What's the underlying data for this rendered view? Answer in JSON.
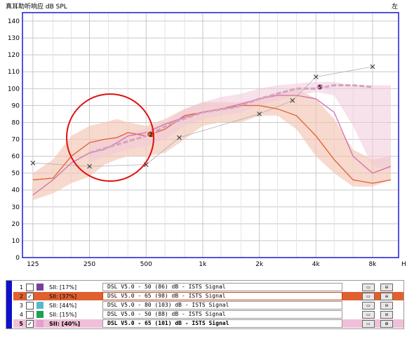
{
  "header": {
    "title": "真耳助听响应 dB SPL",
    "side": "左",
    "h_label": "H"
  },
  "chart_data": {
    "type": "line",
    "title": "真耳助听响应 dB SPL",
    "xscale": "log",
    "xlim": [
      110,
      11000
    ],
    "ylim": [
      0,
      145
    ],
    "yticks": [
      0,
      10,
      20,
      30,
      40,
      50,
      60,
      70,
      80,
      90,
      100,
      110,
      120,
      130,
      140
    ],
    "xticks": [
      {
        "v": 125,
        "label": "125"
      },
      {
        "v": 250,
        "label": "250"
      },
      {
        "v": 500,
        "label": "500"
      },
      {
        "v": 1000,
        "label": "1k"
      },
      {
        "v": 2000,
        "label": "2k"
      },
      {
        "v": 4000,
        "label": "4k"
      },
      {
        "v": 8000,
        "label": "8k"
      }
    ],
    "band_outer": {
      "x": [
        125,
        160,
        200,
        250,
        300,
        350,
        400,
        500,
        630,
        800,
        1000,
        1250,
        1600,
        2000,
        2500,
        3150,
        4000,
        5000,
        6300,
        8000,
        10000
      ],
      "upper": [
        50,
        58,
        72,
        78,
        80,
        82,
        80,
        78,
        82,
        88,
        92,
        92,
        92,
        94,
        98,
        100,
        94,
        82,
        64,
        58,
        60
      ],
      "lower": [
        34,
        38,
        44,
        48,
        55,
        58,
        60,
        60,
        62,
        70,
        78,
        80,
        80,
        84,
        84,
        76,
        60,
        50,
        42,
        42,
        46
      ]
    },
    "band_inner": {
      "x": [
        250,
        300,
        350,
        400,
        500,
        630,
        800,
        1000,
        1250,
        1600,
        2000,
        2500,
        3150,
        4000,
        5000,
        6300,
        8000,
        10000
      ],
      "upper": [
        70,
        70,
        72,
        74,
        76,
        80,
        88,
        92,
        95,
        97,
        100,
        102,
        103,
        104,
        104,
        102,
        102,
        102
      ],
      "lower": [
        56,
        60,
        62,
        64,
        66,
        70,
        78,
        82,
        84,
        86,
        90,
        93,
        96,
        98,
        96,
        78,
        54,
        52
      ]
    },
    "series": [
      {
        "color": "#e06030",
        "x": [
          125,
          160,
          200,
          250,
          300,
          350,
          400,
          500,
          630,
          800,
          1000,
          1250,
          1600,
          2000,
          2500,
          3150,
          4000,
          5000,
          6300,
          8000,
          10000
        ],
        "values": [
          46,
          47,
          60,
          68,
          70,
          71,
          74,
          72,
          76,
          84,
          86,
          88,
          90,
          90,
          88,
          84,
          72,
          58,
          46,
          44,
          46
        ]
      },
      {
        "color": "#d070b0",
        "x": [
          125,
          160,
          200,
          250,
          300,
          350,
          400,
          500,
          630,
          800,
          1000,
          1250,
          1600,
          2000,
          2500,
          3150,
          4000,
          5000,
          6300,
          8000,
          10000
        ],
        "values": [
          37,
          46,
          56,
          62,
          64,
          68,
          72,
          74,
          79,
          83,
          86,
          88,
          91,
          94,
          96,
          96,
          94,
          86,
          60,
          50,
          54
        ]
      },
      {
        "color": "#cfa0d6",
        "dashed": true,
        "x": [
          250,
          500,
          700,
          1000,
          1500,
          2000,
          2500,
          3150,
          4000,
          5000,
          6300,
          8000
        ],
        "values": [
          62,
          72,
          80,
          86,
          89,
          94,
          97,
          100,
          100,
          102,
          102,
          101
        ]
      }
    ],
    "x_markers": [
      {
        "x": 125,
        "y": 56
      },
      {
        "x": 250,
        "y": 54
      },
      {
        "x": 500,
        "y": 55
      },
      {
        "x": 750,
        "y": 71
      },
      {
        "x": 2000,
        "y": 85
      },
      {
        "x": 3000,
        "y": 93
      },
      {
        "x": 4000,
        "y": 107
      },
      {
        "x": 8000,
        "y": 113
      }
    ],
    "badges": [
      {
        "x": 530,
        "y": 73,
        "label": "2",
        "color": "#e06030"
      },
      {
        "x": 4200,
        "y": 101,
        "label": "5",
        "color": "#e0a0d0"
      }
    ],
    "annotation": "red-circle"
  },
  "panel": {
    "rows": [
      {
        "num": "1",
        "checked": false,
        "color": "#7a3f9a",
        "sii": "SII: [17%]",
        "desc": "DSL V5.0 - 50 (86) dB - ISTS Signal",
        "style": ""
      },
      {
        "num": "2",
        "checked": true,
        "color": "#e06030",
        "sii": "SII: [37%]",
        "desc": "DSL V5.0 - 65 (98) dB - ISTS Signal",
        "style": "sel"
      },
      {
        "num": "3",
        "checked": false,
        "color": "#58b8c8",
        "sii": "SII: [44%]",
        "desc": "DSL V5.0 - 80 (103) dB - ISTS Signal",
        "style": ""
      },
      {
        "num": "4",
        "checked": false,
        "color": "#20a050",
        "sii": "SII: [15%]",
        "desc": "DSL V5.0 - 50 (88) dB - ISTS Signal",
        "style": ""
      },
      {
        "num": "5",
        "checked": true,
        "color": "#e0a0d0",
        "sii": "SII: [40%]",
        "desc": "DSL V5.0 - 65 (101) dB - ISTS Signal",
        "style": "sel5"
      }
    ],
    "check_mark": "✓",
    "btn1": "▭",
    "btn2": "⊖"
  }
}
